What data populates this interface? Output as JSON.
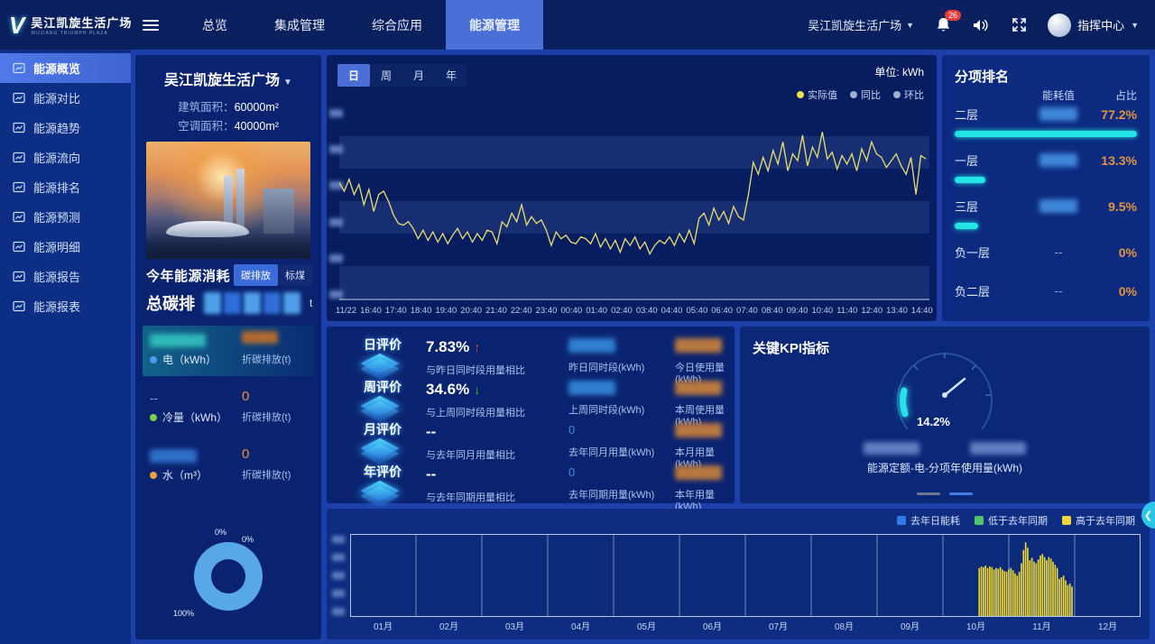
{
  "header": {
    "logo_title": "吴江凯旋生活广场",
    "logo_sub": "WUJIANG TRIUMPH PLAZA",
    "logo_mark": "V",
    "nav": [
      {
        "label": "总览"
      },
      {
        "label": "集成管理"
      },
      {
        "label": "综合应用"
      },
      {
        "label": "能源管理"
      }
    ],
    "site": "吴江凯旋生活广场",
    "badge": "26",
    "user": "指挥中心"
  },
  "sidebar": {
    "items": [
      {
        "label": "能源概览"
      },
      {
        "label": "能源对比"
      },
      {
        "label": "能源趋势"
      },
      {
        "label": "能源流向"
      },
      {
        "label": "能源排名"
      },
      {
        "label": "能源预测"
      },
      {
        "label": "能源明细"
      },
      {
        "label": "能源报告"
      },
      {
        "label": "能源报表"
      }
    ]
  },
  "building": {
    "name": "吴江凯旋生活广场",
    "area_label": "建筑面积：",
    "area_value": "60000m²",
    "ac_label": "空调面积：",
    "ac_value": "40000m²",
    "section_title": "今年能源消耗",
    "tab_carbon": "碳排放",
    "tab_coal": "标煤",
    "total_label": "总碳排",
    "total_unit": "t",
    "stats": [
      {
        "name": "电（kWh）",
        "value": "",
        "sub_label": "折碳排放(t)",
        "sub_value": "",
        "dot": "#4a9de8"
      },
      {
        "name": "冷量（kWh）",
        "value": "--",
        "sub_label": "折碳排放(t)",
        "sub_value": "0",
        "dot": "#79d24a"
      },
      {
        "name": "水（m³）",
        "value": "",
        "sub_label": "折碳排放(t)",
        "sub_value": "0",
        "dot": "#e8a13c"
      }
    ],
    "donut": {
      "labels": [
        "0%",
        "0%",
        "100%"
      ],
      "color": "#58a7e8"
    }
  },
  "trend": {
    "tabs": [
      "日",
      "周",
      "月",
      "年"
    ],
    "active_tab": "日",
    "unit": "单位: kWh",
    "legend": [
      {
        "label": "实际值",
        "color": "#e8e04a"
      },
      {
        "label": "同比",
        "color": "#9fb0d0"
      },
      {
        "label": "环比",
        "color": "#9fb0d0"
      }
    ],
    "x_labels": [
      "11/22",
      "16:40",
      "17:40",
      "18:40",
      "19:40",
      "20:40",
      "21:40",
      "22:40",
      "23:40",
      "00:40",
      "01:40",
      "02:40",
      "03:40",
      "04:40",
      "05:40",
      "06:40",
      "07:40",
      "08:40",
      "09:40",
      "10:40",
      "11:40",
      "12:40",
      "13:40",
      "14:40"
    ],
    "line_color": "#e8df70",
    "values": [
      63,
      58,
      65,
      56,
      62,
      50,
      59,
      46,
      56,
      58,
      52,
      44,
      39,
      38,
      40,
      36,
      30,
      35,
      29,
      34,
      28,
      33,
      27,
      32,
      36,
      30,
      34,
      28,
      33,
      29,
      35,
      34,
      27,
      40,
      37,
      45,
      40,
      50,
      38,
      43,
      39,
      41,
      35,
      26,
      34,
      30,
      32,
      28,
      27,
      31,
      30,
      27,
      33,
      25,
      30,
      24,
      29,
      22,
      30,
      26,
      31,
      24,
      28,
      21,
      26,
      29,
      27,
      31,
      26,
      33,
      28,
      35,
      27,
      42,
      45,
      38,
      48,
      41,
      46,
      39,
      49,
      43,
      41,
      56,
      75,
      68,
      78,
      70,
      82,
      74,
      87,
      70,
      80,
      76,
      91,
      73,
      84,
      78,
      93,
      77,
      81,
      71,
      79,
      74,
      80,
      70,
      83,
      76,
      87,
      80,
      78,
      72,
      76,
      80,
      73,
      68,
      78,
      56,
      79,
      77
    ]
  },
  "rank": {
    "title": "分项排名",
    "col_value": "能耗值",
    "col_pct": "占比",
    "rows": [
      {
        "name": "二层",
        "value": "",
        "pct": "77.2%",
        "bar": 100
      },
      {
        "name": "一层",
        "value": "",
        "pct": "13.3%",
        "bar": 17
      },
      {
        "name": "三层",
        "value": "",
        "pct": "9.5%",
        "bar": 13
      },
      {
        "name": "负一层",
        "value": "--",
        "pct": "0%",
        "bar": 0
      },
      {
        "name": "负二层",
        "value": "--",
        "pct": "0%",
        "bar": 0
      }
    ]
  },
  "evaluation": {
    "rows": [
      {
        "title": "日评价",
        "pct": "7.83%",
        "arrow": "↑",
        "compare": "与昨日同时段用量相比",
        "v1": "",
        "l1": "昨日同时段(kWh)",
        "v2": "",
        "l2": "今日使用量(kWh)"
      },
      {
        "title": "周评价",
        "pct": "34.6%",
        "arrow": "↓",
        "compare": "与上周同时段用量相比",
        "v1": "",
        "l1": "上周同时段(kWh)",
        "v2": "",
        "l2": "本周使用量(kWh)"
      },
      {
        "title": "月评价",
        "pct": "--",
        "arrow": "",
        "compare": "与去年同月用量相比",
        "v1": "0",
        "l1": "去年同月用量(kWh)",
        "v2": "",
        "l2": "本月用量(kWh)"
      },
      {
        "title": "年评价",
        "pct": "--",
        "arrow": "",
        "compare": "与去年同期用量相比",
        "v1": "0",
        "l1": "去年同期用量(kWh)",
        "v2": "",
        "l2": "本年用量(kWh)"
      }
    ]
  },
  "kpi": {
    "title": "关键KPI指标",
    "gauge_value": "14.2%",
    "gauge_color": "#28e0e8",
    "label": "能源定额-电-分项年使用量(kWh)"
  },
  "bottom": {
    "legend": [
      {
        "label": "去年日能耗",
        "color": "#2f7ce8"
      },
      {
        "label": "低于去年同期",
        "color": "#4fc46a"
      },
      {
        "label": "高于去年同期",
        "color": "#f0d63a"
      }
    ],
    "months": [
      "01月",
      "02月",
      "03月",
      "04月",
      "05月",
      "06月",
      "07月",
      "08月",
      "09月",
      "10月",
      "11月",
      "12月"
    ],
    "bar_color": "#f2da35",
    "bars": [
      62,
      64,
      63,
      65,
      62,
      64,
      63,
      60,
      62,
      61,
      63,
      60,
      58,
      57,
      60,
      62,
      59,
      55,
      52,
      57,
      68,
      85,
      95,
      88,
      72,
      75,
      70,
      68,
      73,
      78,
      80,
      76,
      72,
      76,
      74,
      70,
      66,
      62,
      48,
      50,
      52,
      46,
      40,
      42,
      38
    ]
  }
}
